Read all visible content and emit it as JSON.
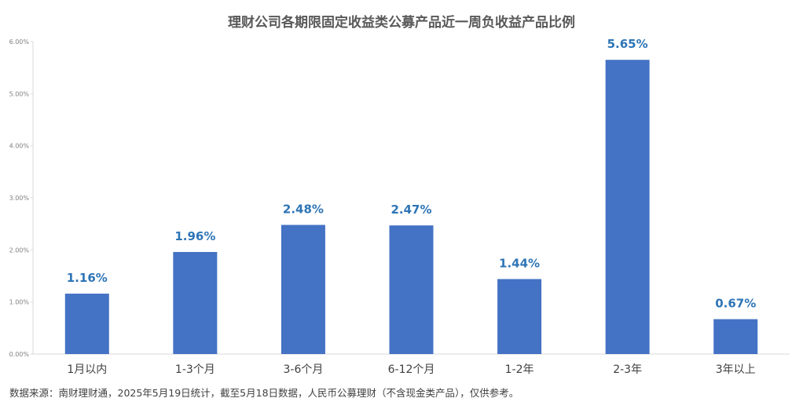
{
  "chart_data": {
    "type": "bar",
    "title": "理财公司各期限固定收益类公募产品近一周负收益产品比例",
    "categories": [
      "1月以内",
      "1-3个月",
      "3-6个月",
      "6-12个月",
      "1-2年",
      "2-3年",
      "3年以上"
    ],
    "values": [
      1.16,
      1.96,
      2.48,
      2.47,
      1.44,
      5.65,
      0.67
    ],
    "data_labels": [
      "1.16%",
      "1.96%",
      "2.48%",
      "2.47%",
      "1.44%",
      "5.65%",
      "0.67%"
    ],
    "ylim": [
      0,
      6
    ],
    "yticks": [
      "0.00%",
      "1.00%",
      "2.00%",
      "3.00%",
      "4.00%",
      "5.00%",
      "6.00%"
    ],
    "xlabel": "",
    "ylabel": "",
    "bar_color": "#4472C4",
    "label_color": "#2E75B6",
    "grid": false
  },
  "footer": {
    "source": "数据来源：南财理财通，2025年5月19日统计，截至5月18日数据，人民币公募理财（不含现金类产品），仅供参考。"
  }
}
